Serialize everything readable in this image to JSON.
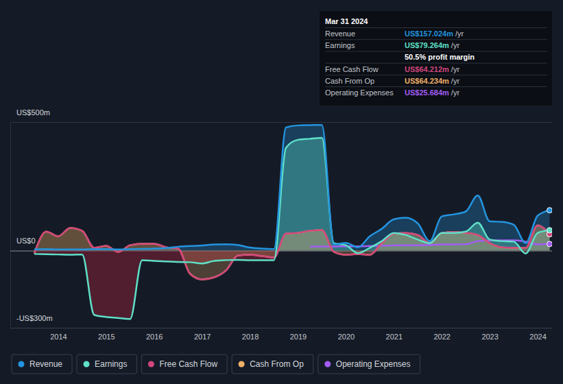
{
  "chart_data": {
    "type": "line",
    "x": [
      2013.5,
      2013.75,
      2014,
      2014.25,
      2014.5,
      2014.75,
      2015,
      2015.25,
      2015.5,
      2015.75,
      2016,
      2016.25,
      2016.5,
      2016.75,
      2017,
      2017.25,
      2017.5,
      2017.75,
      2018,
      2018.25,
      2018.5,
      2018.75,
      2019,
      2019.25,
      2019.5,
      2019.75,
      2020,
      2020.25,
      2020.5,
      2020.75,
      2021,
      2021.25,
      2021.5,
      2021.75,
      2022,
      2022.25,
      2022.5,
      2022.75,
      2023,
      2023.25,
      2023.5,
      2023.75,
      2024,
      2024.25
    ],
    "series": [
      {
        "name": "Revenue",
        "color": "#2394df",
        "type": "area",
        "values": [
          5,
          6,
          5,
          5,
          5,
          6,
          6,
          5,
          6,
          7,
          8,
          10,
          15,
          18,
          20,
          24,
          25,
          22,
          12,
          8,
          6,
          479,
          487,
          488,
          489,
          25,
          30,
          13,
          56,
          85,
          122,
          128,
          106,
          37,
          133,
          141,
          152,
          215,
          114,
          112,
          101,
          29,
          136,
          157.024
        ]
      },
      {
        "name": "Earnings",
        "color": "#5fe0c8",
        "type": "area",
        "values": [
          -13,
          -14,
          -15,
          -16,
          -15,
          -250,
          -258,
          -262,
          -266,
          -37,
          -40,
          -42,
          -44,
          -45,
          -50,
          -40,
          -37,
          -36,
          -37,
          -37,
          -37,
          400,
          431,
          435,
          439,
          29,
          21,
          -10,
          11,
          37,
          69,
          61,
          43,
          29,
          69,
          69,
          74,
          109,
          43,
          37,
          35,
          -11,
          69,
          79.264
        ]
      },
      {
        "name": "Free Cash Flow",
        "color": "#d1457c",
        "type": "line",
        "values": [
          -11,
          74,
          56,
          88,
          77,
          11,
          19,
          -5,
          21,
          27,
          27,
          13,
          8,
          -90,
          -112,
          -104,
          -77,
          -19,
          -16,
          -21,
          -27,
          66,
          69,
          77,
          80,
          -5,
          -16,
          -13,
          -16,
          29,
          66,
          69,
          61,
          29,
          69,
          72,
          69,
          61,
          29,
          13,
          11,
          11,
          98,
          64.212
        ]
      },
      {
        "name": "Cash From Op",
        "color": "#f2b168",
        "type": "area",
        "values": [
          -11,
          74,
          56,
          88,
          77,
          11,
          19,
          -5,
          21,
          27,
          27,
          13,
          8,
          -90,
          -112,
          -104,
          -77,
          -19,
          -16,
          -21,
          -27,
          66,
          69,
          77,
          80,
          -5,
          -16,
          -13,
          -16,
          29,
          66,
          69,
          61,
          29,
          69,
          72,
          69,
          61,
          29,
          13,
          11,
          11,
          98,
          64.234
        ]
      },
      {
        "name": "Operating Expenses",
        "color": "#a35cf5",
        "type": "line",
        "values": [
          null,
          null,
          null,
          null,
          null,
          null,
          null,
          null,
          null,
          null,
          null,
          null,
          null,
          null,
          null,
          null,
          null,
          null,
          null,
          null,
          null,
          null,
          null,
          16,
          16,
          16,
          17,
          17,
          18,
          19,
          20,
          21,
          21,
          22,
          24,
          24,
          25,
          37,
          40,
          40,
          40,
          35,
          24,
          25.684
        ]
      }
    ],
    "xlim": [
      2013,
      2024.3
    ],
    "xticks": [
      2014,
      2015,
      2016,
      2017,
      2018,
      2019,
      2020,
      2021,
      2022,
      2023,
      2024
    ],
    "ylim": [
      -300,
      500
    ],
    "yticks": [
      {
        "value": -300,
        "label": "-US$300m"
      },
      {
        "value": 0,
        "label": "US$0"
      },
      {
        "value": 500,
        "label": "US$500m"
      }
    ],
    "grid": true,
    "legend": "bottom-left",
    "marker": "circle",
    "annotations": {
      "title": "Mar 31 2024",
      "rows": [
        {
          "label": "Revenue",
          "text": "US$157.024m",
          "unit": "/yr"
        },
        {
          "label": "Earnings",
          "text": "US$79.264m",
          "unit": "/yr"
        },
        {
          "text": "50.5% profit margin"
        },
        {
          "label": "Free Cash Flow",
          "text": "US$64.212m",
          "unit": "/yr"
        },
        {
          "label": "Cash From Op",
          "text": "US$64.234m",
          "unit": "/yr"
        },
        {
          "label": "Operating Expenses",
          "text": "US$25.684m",
          "unit": "/yr"
        }
      ]
    }
  }
}
